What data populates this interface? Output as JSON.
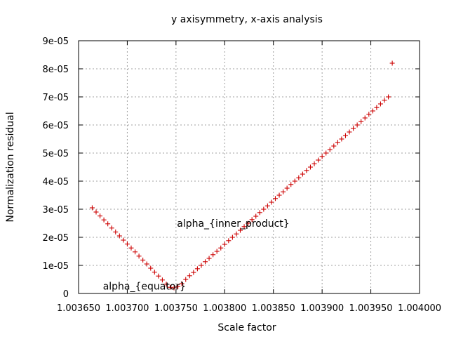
{
  "chart_data": {
    "type": "scatter",
    "title": "y axisymmetry, x-axis analysis",
    "xlabel": "Scale factor",
    "ylabel": "Normalization residual",
    "xlim": [
      1.00365,
      1.004
    ],
    "ylim": [
      0,
      9e-05
    ],
    "grid": true,
    "x_ticks": [
      "1.003650",
      "1.003700",
      "1.003750",
      "1.003800",
      "1.003850",
      "1.003900",
      "1.003950",
      "1.004000"
    ],
    "y_ticks": [
      "0",
      "1e-05",
      "2e-05",
      "3e-05",
      "4e-05",
      "5e-05",
      "6e-05",
      "7e-05",
      "8e-05",
      "9e-05"
    ],
    "annotations": [
      {
        "text": "alpha_{equator}",
        "x": 1.003675,
        "y": 2.6e-06
      },
      {
        "text": "alpha_{inner_product}",
        "x": 1.003751,
        "y": 2.5e-05
      }
    ],
    "series": [
      {
        "marker": "+",
        "color": "#cc0000",
        "x": [
          1.003664,
          1.003668,
          1.003672,
          1.003676,
          1.00368,
          1.003684,
          1.003688,
          1.003692,
          1.003696,
          1.0037,
          1.003704,
          1.003708,
          1.003712,
          1.003716,
          1.00372,
          1.003724,
          1.003728,
          1.003732,
          1.003736,
          1.00374,
          1.003744,
          1.003748,
          1.003752,
          1.003756,
          1.00376,
          1.003764,
          1.003768,
          1.003772,
          1.003776,
          1.00378,
          1.003784,
          1.003788,
          1.003792,
          1.003796,
          1.0038,
          1.003804,
          1.003808,
          1.003812,
          1.003816,
          1.00382,
          1.003824,
          1.003828,
          1.003832,
          1.003836,
          1.00384,
          1.003844,
          1.003848,
          1.003852,
          1.003856,
          1.00386,
          1.003864,
          1.003868,
          1.003872,
          1.003876,
          1.00388,
          1.003884,
          1.003888,
          1.003892,
          1.003896,
          1.0039,
          1.003904,
          1.003908,
          1.003912,
          1.003916,
          1.00392,
          1.003924,
          1.003928,
          1.003932,
          1.003936,
          1.00394,
          1.003944,
          1.003948,
          1.003952,
          1.003956,
          1.00396,
          1.003964,
          1.003968,
          1.003972
        ],
        "y": [
          3.05e-05,
          2.9e-05,
          2.76e-05,
          2.62e-05,
          2.48e-05,
          2.33e-05,
          2.19e-05,
          2.05e-05,
          1.9e-05,
          1.76e-05,
          1.62e-05,
          1.48e-05,
          1.33e-05,
          1.19e-05,
          1.05e-05,
          9e-06,
          7.6e-06,
          6.2e-06,
          4.8e-06,
          3.3e-06,
          2.2e-06,
          2e-06,
          2.5e-06,
          3.5e-06,
          5e-06,
          6.3e-06,
          7.5e-06,
          8.8e-06,
          1e-05,
          1.13e-05,
          1.25e-05,
          1.38e-05,
          1.5e-05,
          1.62e-05,
          1.75e-05,
          1.88e-05,
          2e-05,
          2.12e-05,
          2.25e-05,
          2.38e-05,
          2.5e-05,
          2.63e-05,
          2.75e-05,
          2.88e-05,
          3e-05,
          3.12e-05,
          3.25e-05,
          3.38e-05,
          3.5e-05,
          3.62e-05,
          3.75e-05,
          3.88e-05,
          4e-05,
          4.12e-05,
          4.25e-05,
          4.38e-05,
          4.5e-05,
          4.62e-05,
          4.75e-05,
          4.88e-05,
          5e-05,
          5.12e-05,
          5.25e-05,
          5.38e-05,
          5.5e-05,
          5.62e-05,
          5.75e-05,
          5.88e-05,
          6e-05,
          6.12e-05,
          6.25e-05,
          6.38e-05,
          6.5e-05,
          6.62e-05,
          6.75e-05,
          6.88e-05,
          7e-05,
          8.2e-05
        ]
      }
    ]
  }
}
